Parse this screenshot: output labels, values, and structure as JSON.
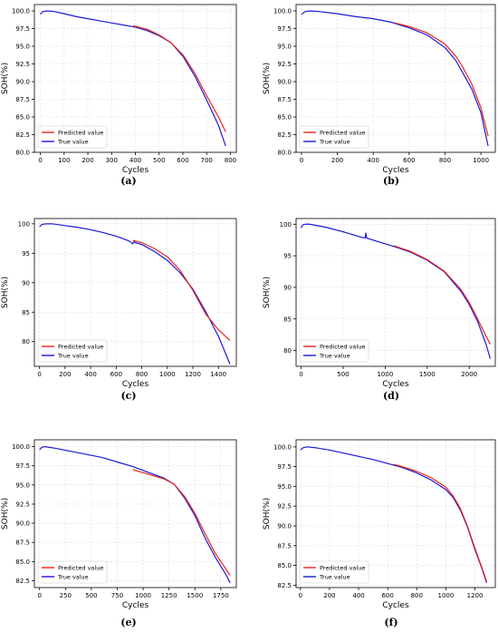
{
  "colors": {
    "predicted": "#e8251c",
    "true": "#1a1ad6",
    "grid": "#dcdcdc",
    "frame": "#000000"
  },
  "chart_data": [
    {
      "type": "line",
      "caption": "(a)",
      "xlabel": "Cycles",
      "ylabel": "SOH(%)",
      "xlim": [
        -25,
        825
      ],
      "ylim": [
        80,
        100.9
      ],
      "xticks": [
        0,
        100,
        200,
        300,
        400,
        500,
        600,
        700,
        800
      ],
      "yticks": [
        80.0,
        82.5,
        85.0,
        87.5,
        90.0,
        92.5,
        95.0,
        97.5,
        100.0
      ],
      "ytick_decimals": 1,
      "grid": true,
      "legend_position": "lower-left",
      "series": [
        {
          "name": "Predicted value",
          "color": "#e8251c",
          "x": [
            390,
            450,
            500,
            550,
            600,
            650,
            700,
            750,
            780
          ],
          "y": [
            97.9,
            97.4,
            96.6,
            95.5,
            93.8,
            91.2,
            88.0,
            85.0,
            82.9
          ]
        },
        {
          "name": "True value",
          "color": "#1a1ad6",
          "x": [
            0,
            10,
            30,
            60,
            100,
            150,
            200,
            250,
            300,
            350,
            400,
            450,
            500,
            550,
            600,
            650,
            700,
            750,
            780
          ],
          "y": [
            99.5,
            99.9,
            100.0,
            99.9,
            99.6,
            99.2,
            98.9,
            98.6,
            98.3,
            98.0,
            97.7,
            97.2,
            96.5,
            95.5,
            93.6,
            90.8,
            87.4,
            83.8,
            80.9
          ]
        }
      ]
    },
    {
      "type": "line",
      "caption": "(b)",
      "xlabel": "Cycles",
      "ylabel": "SOH(%)",
      "xlim": [
        -30,
        1080
      ],
      "ylim": [
        80,
        100.9
      ],
      "xticks": [
        0,
        200,
        400,
        600,
        800,
        1000
      ],
      "yticks": [
        80.0,
        82.5,
        85.0,
        87.5,
        90.0,
        92.5,
        95.0,
        97.5,
        100.0
      ],
      "ytick_decimals": 1,
      "grid": true,
      "legend_position": "lower-left",
      "series": [
        {
          "name": "Predicted value",
          "color": "#e8251c",
          "x": [
            520,
            600,
            700,
            800,
            860,
            900,
            950,
            1000,
            1040
          ],
          "y": [
            98.3,
            97.8,
            96.9,
            95.3,
            93.6,
            92.0,
            89.6,
            86.3,
            82.3
          ]
        },
        {
          "name": "True value",
          "color": "#1a1ad6",
          "x": [
            0,
            20,
            50,
            100,
            200,
            300,
            400,
            500,
            600,
            700,
            800,
            860,
            900,
            950,
            1000,
            1040
          ],
          "y": [
            99.5,
            99.9,
            100.0,
            99.9,
            99.6,
            99.2,
            98.9,
            98.4,
            97.6,
            96.6,
            94.8,
            93.0,
            91.2,
            88.9,
            85.6,
            80.9
          ]
        }
      ]
    },
    {
      "type": "line",
      "caption": "(c)",
      "xlabel": "Cycles",
      "ylabel": "SOH(%)",
      "xlim": [
        -40,
        1540
      ],
      "ylim": [
        75.8,
        100.9
      ],
      "xticks": [
        0,
        200,
        400,
        600,
        800,
        1000,
        1200,
        1400
      ],
      "yticks": [
        80,
        85,
        90,
        95,
        100
      ],
      "ytick_decimals": 0,
      "grid": true,
      "legend_position": "lower-left",
      "series": [
        {
          "name": "Predicted value",
          "color": "#e8251c",
          "x": [
            730,
            800,
            900,
            1000,
            1100,
            1200,
            1300,
            1400,
            1490
          ],
          "y": [
            97.2,
            96.8,
            95.8,
            94.4,
            92.1,
            88.7,
            84.7,
            82.0,
            80.2
          ]
        },
        {
          "name": "True value",
          "color": "#1a1ad6",
          "x": [
            0,
            20,
            50,
            100,
            200,
            300,
            400,
            500,
            600,
            700,
            730,
            740,
            750,
            800,
            900,
            1000,
            1100,
            1200,
            1300,
            1400,
            1490
          ],
          "y": [
            99.5,
            99.9,
            100.0,
            100.0,
            99.7,
            99.4,
            99.0,
            98.5,
            97.9,
            97.1,
            96.6,
            97.0,
            96.8,
            96.5,
            95.3,
            93.8,
            91.7,
            88.9,
            85.1,
            80.9,
            76.2
          ]
        }
      ]
    },
    {
      "type": "line",
      "caption": "(d)",
      "xlabel": "Cycles",
      "ylabel": "SOH(%)",
      "xlim": [
        -60,
        2310
      ],
      "ylim": [
        77.5,
        100.9
      ],
      "xticks": [
        0,
        500,
        1000,
        1500,
        2000
      ],
      "yticks": [
        80,
        85,
        90,
        95,
        100
      ],
      "ytick_decimals": 0,
      "grid": true,
      "legend_position": "lower-left",
      "series": [
        {
          "name": "Predicted value",
          "color": "#e8251c",
          "x": [
            1100,
            1300,
            1500,
            1700,
            1900,
            2000,
            2100,
            2200,
            2250
          ],
          "y": [
            96.6,
            95.7,
            94.4,
            92.6,
            89.7,
            87.6,
            85.0,
            82.3,
            81.0
          ]
        },
        {
          "name": "True value",
          "color": "#1a1ad6",
          "x": [
            0,
            20,
            50,
            100,
            300,
            500,
            700,
            760,
            770,
            780,
            900,
            1100,
            1300,
            1500,
            1700,
            1900,
            2000,
            2100,
            2200,
            2250
          ],
          "y": [
            99.4,
            99.9,
            100.0,
            100.0,
            99.5,
            98.8,
            98.0,
            97.8,
            98.6,
            97.8,
            97.3,
            96.5,
            95.6,
            94.3,
            92.5,
            89.4,
            87.3,
            84.6,
            81.0,
            78.7
          ]
        }
      ]
    },
    {
      "type": "line",
      "caption": "(e)",
      "xlabel": "Cycles",
      "ylabel": "SOH(%)",
      "xlim": [
        -50,
        1900
      ],
      "ylim": [
        81.6,
        100.9
      ],
      "xticks": [
        0,
        250,
        500,
        750,
        1000,
        1250,
        1500,
        1750
      ],
      "yticks": [
        82.5,
        85.0,
        87.5,
        90.0,
        92.5,
        95.0,
        97.5,
        100.0
      ],
      "ytick_decimals": 1,
      "grid": true,
      "legend_position": "lower-left",
      "series": [
        {
          "name": "Predicted value",
          "color": "#e8251c",
          "x": [
            900,
            1000,
            1100,
            1200,
            1300,
            1400,
            1500,
            1600,
            1700,
            1800,
            1840
          ],
          "y": [
            97.0,
            96.6,
            96.2,
            95.8,
            95.1,
            93.5,
            91.3,
            88.6,
            86.0,
            84.0,
            83.2
          ]
        },
        {
          "name": "True value",
          "color": "#1a1ad6",
          "x": [
            0,
            20,
            50,
            150,
            300,
            450,
            600,
            750,
            900,
            1000,
            1100,
            1200,
            1300,
            1400,
            1500,
            1600,
            1700,
            1800,
            1840
          ],
          "y": [
            99.6,
            99.9,
            100.0,
            99.8,
            99.4,
            99.0,
            98.6,
            98.0,
            97.4,
            96.9,
            96.4,
            95.9,
            95.1,
            93.3,
            91.0,
            88.0,
            85.5,
            83.3,
            82.2
          ]
        }
      ]
    },
    {
      "type": "line",
      "caption": "(f)",
      "xlabel": "Cycles",
      "ylabel": "SOH(%)",
      "xlim": [
        -30,
        1340
      ],
      "ylim": [
        82.2,
        100.9
      ],
      "xticks": [
        0,
        200,
        400,
        600,
        800,
        1000,
        1200
      ],
      "yticks": [
        82.5,
        85.0,
        87.5,
        90.0,
        92.5,
        95.0,
        97.5,
        100.0
      ],
      "ytick_decimals": 1,
      "grid": true,
      "legend_position": "lower-left",
      "series": [
        {
          "name": "Predicted value",
          "color": "#e8251c",
          "x": [
            640,
            700,
            800,
            900,
            1000,
            1050,
            1100,
            1150,
            1200,
            1250,
            1280
          ],
          "y": [
            97.8,
            97.5,
            96.9,
            96.1,
            94.9,
            93.8,
            92.2,
            89.9,
            87.2,
            84.6,
            83.0
          ]
        },
        {
          "name": "True value",
          "color": "#1a1ad6",
          "x": [
            0,
            20,
            50,
            100,
            200,
            300,
            400,
            500,
            600,
            700,
            800,
            900,
            1000,
            1050,
            1100,
            1150,
            1200,
            1250,
            1280
          ],
          "y": [
            99.6,
            99.9,
            100.0,
            99.9,
            99.6,
            99.2,
            98.8,
            98.4,
            97.9,
            97.4,
            96.7,
            95.8,
            94.6,
            93.6,
            92.0,
            89.8,
            87.0,
            84.5,
            82.8
          ]
        }
      ]
    }
  ]
}
